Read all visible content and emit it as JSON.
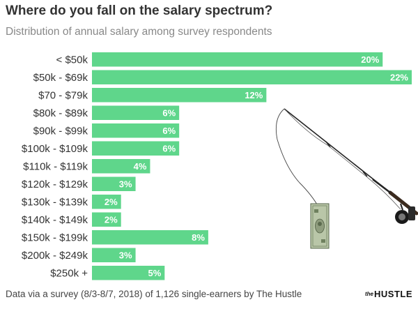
{
  "chart_data": {
    "type": "bar",
    "orientation": "horizontal",
    "title": "Where do you fall on the salary spectrum?",
    "subtitle": "Distribution of annual salary among survey respondents",
    "categories": [
      "< $50k",
      "$50k - $69k",
      "$70 - $79k",
      "$80k - $89k",
      "$90k - $99k",
      "$100k - $109k",
      "$110k - $119k",
      "$120k - $129k",
      "$130k - $139k",
      "$140k - $149k",
      "$150k - $199k",
      "$200k - $249k",
      "$250k +"
    ],
    "values": [
      20,
      22,
      12,
      6,
      6,
      6,
      4,
      3,
      2,
      2,
      8,
      3,
      5
    ],
    "value_labels": [
      "20%",
      "22%",
      "12%",
      "6%",
      "6%",
      "6%",
      "4%",
      "3%",
      "2%",
      "2%",
      "8%",
      "3%",
      "5%"
    ],
    "xlim": [
      0,
      22
    ],
    "grid": false,
    "bar_color": "#5fd68b"
  },
  "footer": {
    "source": "Data via a survey (8/3-8/7, 2018) of 1,126 single-earners by The Hustle",
    "brand_the": "the",
    "brand_name": "HUSTLE"
  },
  "illustration": {
    "icon": "fishing-rod-with-dollar-bill-icon"
  }
}
